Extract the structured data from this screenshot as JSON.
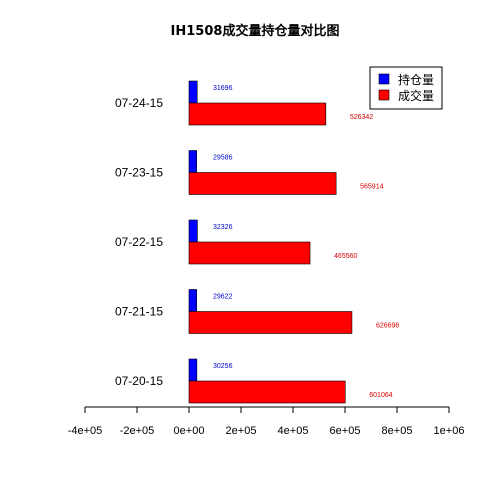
{
  "chart_data": {
    "type": "bar",
    "orientation": "horizontal",
    "title": "IH1508成交量持仓量对比图",
    "categories": [
      "07-20-15",
      "07-21-15",
      "07-22-15",
      "07-23-15",
      "07-24-15"
    ],
    "series": [
      {
        "name": "持仓量",
        "color": "#0000ff",
        "values": [
          30256,
          29622,
          32326,
          29586,
          31696
        ]
      },
      {
        "name": "成交量",
        "color": "#ff0000",
        "values": [
          601064,
          626696,
          465560,
          565914,
          526342
        ]
      }
    ],
    "data_labels": {
      "持仓量": [
        "30256",
        "29622",
        "32326",
        "29586",
        "31696"
      ],
      "成交量": [
        "601064",
        "626696",
        "465560",
        "565914",
        "526342"
      ]
    },
    "xlim": [
      -400000,
      1000000
    ],
    "xticks": [
      -400000,
      -200000,
      0,
      200000,
      400000,
      600000,
      800000,
      1000000
    ],
    "xtick_labels": [
      "-4e+05",
      "-2e+05",
      "0e+00",
      "2e+05",
      "4e+05",
      "6e+05",
      "8e+05",
      "1e+06"
    ],
    "xlabel": "",
    "ylabel": "",
    "grid": false,
    "legend_position": "top-right"
  }
}
